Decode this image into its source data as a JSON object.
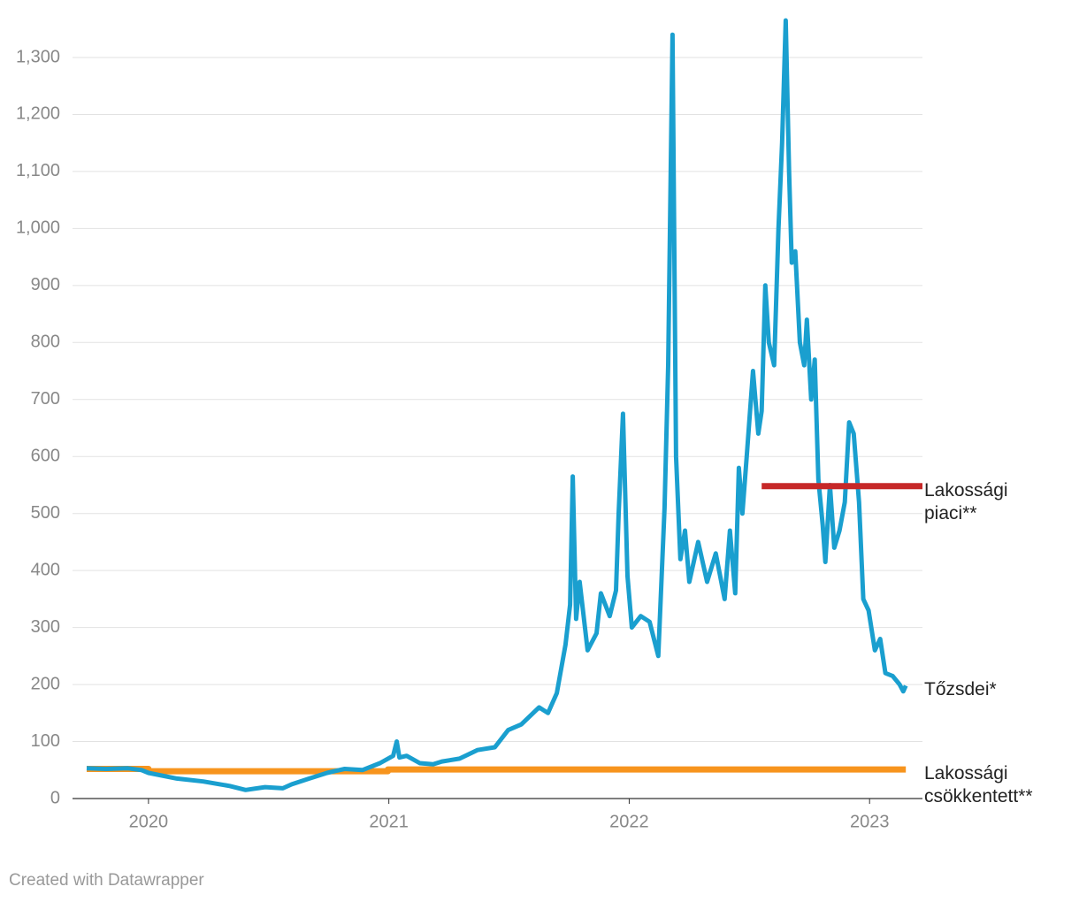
{
  "chart_data": {
    "type": "line",
    "footer": "Created with Datawrapper",
    "xlim": [
      2019.684,
      2023.22
    ],
    "xticks": [
      2020,
      2021,
      2022,
      2023
    ],
    "ylim": [
      0,
      1300
    ],
    "yticks": [
      0,
      100,
      200,
      300,
      400,
      500,
      600,
      700,
      800,
      900,
      {
        "value": 1000,
        "label": "1,000"
      },
      {
        "value": 1100,
        "label": "1,100"
      },
      {
        "value": 1200,
        "label": "1,200"
      },
      {
        "value": 1300,
        "label": "1,300"
      }
    ],
    "grid": true,
    "series": [
      {
        "name": "Lakossági csökkentett**",
        "color": "#f7941d",
        "x": [
          2019.743,
          2020.0,
          2020.0,
          2020.996,
          2020.996,
          2023.151
        ],
        "values": [
          52,
          52,
          48,
          48,
          51,
          51
        ]
      },
      {
        "name": "Tőzsdei*",
        "color": "#1a9fcf",
        "x": [
          2019.743,
          2019.824,
          2019.915,
          2019.971,
          2020.0,
          2020.118,
          2020.228,
          2020.338,
          2020.404,
          2020.485,
          2020.559,
          2020.596,
          2020.669,
          2020.743,
          2020.816,
          2020.89,
          2020.963,
          2021.018,
          2021.033,
          2021.044,
          2021.074,
          2021.129,
          2021.184,
          2021.221,
          2021.294,
          2021.368,
          2021.441,
          2021.496,
          2021.551,
          2021.625,
          2021.662,
          2021.699,
          2021.735,
          2021.754,
          2021.765,
          2021.779,
          2021.794,
          2021.827,
          2021.864,
          2021.882,
          2021.919,
          2021.945,
          2021.956,
          2021.974,
          2021.993,
          2022.011,
          2022.048,
          2022.085,
          2022.121,
          2022.147,
          2022.162,
          2022.18,
          2022.195,
          2022.213,
          2022.232,
          2022.25,
          2022.287,
          2022.324,
          2022.36,
          2022.397,
          2022.419,
          2022.441,
          2022.456,
          2022.471,
          2022.489,
          2022.515,
          2022.537,
          2022.551,
          2022.566,
          2022.581,
          2022.603,
          2022.621,
          2022.636,
          2022.651,
          2022.665,
          2022.676,
          2022.691,
          2022.71,
          2022.728,
          2022.739,
          2022.757,
          2022.772,
          2022.787,
          2022.805,
          2022.816,
          2022.835,
          2022.853,
          2022.875,
          2022.897,
          2022.915,
          2022.934,
          2022.956,
          2022.974,
          2022.996,
          2023.022,
          2023.044,
          2023.066,
          2023.096,
          2023.125,
          2023.14,
          2023.151
        ],
        "values": [
          53,
          52,
          53,
          50,
          45,
          35,
          30,
          22,
          15,
          20,
          18,
          25,
          35,
          45,
          52,
          50,
          62,
          75,
          100,
          72,
          75,
          62,
          60,
          65,
          70,
          85,
          90,
          120,
          130,
          160,
          150,
          185,
          270,
          340,
          565,
          315,
          380,
          260,
          290,
          360,
          320,
          365,
          500,
          675,
          390,
          300,
          320,
          310,
          250,
          510,
          760,
          1340,
          600,
          420,
          470,
          380,
          450,
          380,
          430,
          350,
          470,
          360,
          580,
          500,
          600,
          750,
          640,
          680,
          900,
          800,
          760,
          1000,
          1150,
          1365,
          1100,
          940,
          960,
          800,
          760,
          840,
          700,
          770,
          560,
          480,
          415,
          550,
          440,
          470,
          520,
          660,
          640,
          520,
          350,
          330,
          260,
          280,
          220,
          215,
          200,
          188,
          198
        ]
      },
      {
        "name": "Lakossági piaci**",
        "color": "#c62828",
        "x": [
          2022.551,
          2023.22
        ],
        "values": [
          548,
          548
        ]
      }
    ]
  }
}
